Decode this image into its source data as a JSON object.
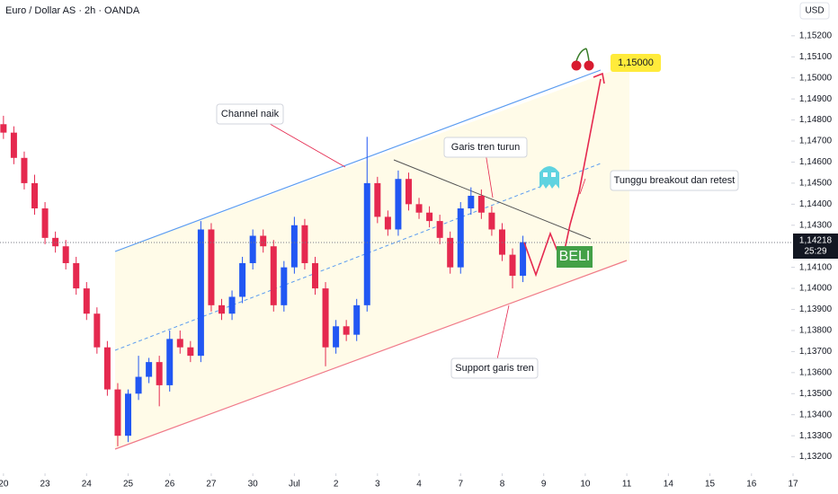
{
  "chart_data": {
    "type": "candlestick",
    "title": "Euro / Dollar AS · 2h · OANDA",
    "currency": "USD",
    "up_color": "#2157f3",
    "down_color": "#e5294f",
    "x": [
      0,
      3,
      6,
      9,
      12,
      15,
      18,
      21,
      24,
      27,
      30,
      33,
      36,
      39,
      42,
      45,
      48,
      51,
      54,
      57,
      60,
      63,
      66,
      69,
      72,
      75,
      78,
      81,
      84,
      87,
      90,
      93,
      96,
      99,
      102,
      105,
      108,
      111,
      114,
      117,
      120,
      123,
      126,
      129,
      132,
      135,
      138,
      141,
      144,
      147,
      150
    ],
    "open": [
      1.1478,
      1.1474,
      1.1462,
      1.145,
      1.1438,
      1.1424,
      1.142,
      1.1412,
      1.14,
      1.1388,
      1.1372,
      1.1352,
      1.133,
      1.135,
      1.1358,
      1.1365,
      1.1354,
      1.1376,
      1.1372,
      1.1368,
      1.1428,
      1.1392,
      1.1388,
      1.1396,
      1.1412,
      1.1425,
      1.142,
      1.1392,
      1.141,
      1.143,
      1.1412,
      1.14,
      1.1372,
      1.1382,
      1.1378,
      1.1392,
      1.145,
      1.1434,
      1.1428,
      1.1452,
      1.144,
      1.1436,
      1.1432,
      1.1424,
      1.141,
      1.1438,
      1.1444,
      1.1436,
      1.1428,
      1.1416,
      1.1406
    ],
    "high": [
      1.1482,
      1.1477,
      1.1465,
      1.1454,
      1.1441,
      1.1427,
      1.1423,
      1.1415,
      1.1403,
      1.1391,
      1.1375,
      1.1355,
      1.1352,
      1.1368,
      1.1367,
      1.1368,
      1.138,
      1.138,
      1.1375,
      1.1432,
      1.1431,
      1.1395,
      1.1399,
      1.1415,
      1.1428,
      1.1428,
      1.1423,
      1.1413,
      1.1434,
      1.1433,
      1.1415,
      1.1403,
      1.1385,
      1.1385,
      1.1395,
      1.1472,
      1.1453,
      1.1437,
      1.1456,
      1.1455,
      1.1443,
      1.1439,
      1.1435,
      1.1427,
      1.1441,
      1.1448,
      1.1447,
      1.1439,
      1.1431,
      1.1419,
      1.1425
    ],
    "low": [
      1.1471,
      1.1459,
      1.1447,
      1.1435,
      1.1421,
      1.1417,
      1.1409,
      1.1397,
      1.1385,
      1.1369,
      1.1349,
      1.1325,
      1.1327,
      1.1347,
      1.1355,
      1.1344,
      1.1351,
      1.1369,
      1.1365,
      1.1365,
      1.1389,
      1.1385,
      1.1385,
      1.1393,
      1.1409,
      1.1417,
      1.1389,
      1.1389,
      1.1407,
      1.1409,
      1.1397,
      1.1363,
      1.1369,
      1.1375,
      1.1375,
      1.1389,
      1.1431,
      1.1425,
      1.1425,
      1.1437,
      1.1433,
      1.1429,
      1.1421,
      1.1407,
      1.1407,
      1.1435,
      1.1433,
      1.1425,
      1.1413,
      1.14,
      1.1403
    ],
    "close": [
      1.1474,
      1.1462,
      1.145,
      1.1438,
      1.1424,
      1.142,
      1.1412,
      1.14,
      1.1388,
      1.1372,
      1.1352,
      1.133,
      1.135,
      1.1358,
      1.1365,
      1.1354,
      1.1376,
      1.1372,
      1.1368,
      1.1428,
      1.1392,
      1.1388,
      1.1396,
      1.1412,
      1.1425,
      1.142,
      1.1392,
      1.141,
      1.143,
      1.1412,
      1.14,
      1.1372,
      1.1382,
      1.1378,
      1.1392,
      1.145,
      1.1434,
      1.1428,
      1.1452,
      1.144,
      1.1436,
      1.1432,
      1.1424,
      1.141,
      1.1438,
      1.1444,
      1.1436,
      1.1428,
      1.1416,
      1.1406,
      1.1422
    ],
    "xlim": [
      -1,
      240
    ],
    "ylim": [
      1.1313,
      1.1537
    ],
    "yticks": [
      {
        "value": 1.132,
        "label": "1,13200"
      },
      {
        "value": 1.133,
        "label": "1,13300"
      },
      {
        "value": 1.134,
        "label": "1,13400"
      },
      {
        "value": 1.135,
        "label": "1,13500"
      },
      {
        "value": 1.136,
        "label": "1,13600"
      },
      {
        "value": 1.137,
        "label": "1,13700"
      },
      {
        "value": 1.138,
        "label": "1,13800"
      },
      {
        "value": 1.139,
        "label": "1,13900"
      },
      {
        "value": 1.14,
        "label": "1,14000"
      },
      {
        "value": 1.141,
        "label": "1,14100"
      },
      {
        "value": 1.143,
        "label": "1,14300"
      },
      {
        "value": 1.144,
        "label": "1,14400"
      },
      {
        "value": 1.145,
        "label": "1,14500"
      },
      {
        "value": 1.146,
        "label": "1,14600"
      },
      {
        "value": 1.147,
        "label": "1,14700"
      },
      {
        "value": 1.148,
        "label": "1,14800"
      },
      {
        "value": 1.149,
        "label": "1,14900"
      },
      {
        "value": 1.15,
        "label": "1,15000"
      },
      {
        "value": 1.151,
        "label": "1,15100"
      },
      {
        "value": 1.152,
        "label": "1,15200"
      }
    ],
    "xticks": [
      {
        "value": 0,
        "label": "20"
      },
      {
        "value": 12,
        "label": "23"
      },
      {
        "value": 24,
        "label": "24"
      },
      {
        "value": 36,
        "label": "25"
      },
      {
        "value": 48,
        "label": "26"
      },
      {
        "value": 60,
        "label": "27"
      },
      {
        "value": 72,
        "label": "30"
      },
      {
        "value": 84,
        "label": "Jul"
      },
      {
        "value": 96,
        "label": "2"
      },
      {
        "value": 108,
        "label": "3"
      },
      {
        "value": 120,
        "label": "4"
      },
      {
        "value": 132,
        "label": "7"
      },
      {
        "value": 144,
        "label": "8"
      },
      {
        "value": 156,
        "label": "9"
      },
      {
        "value": 168,
        "label": "10"
      },
      {
        "value": 180,
        "label": "11"
      },
      {
        "value": 192,
        "label": "14"
      },
      {
        "value": 204,
        "label": "15"
      },
      {
        "value": 216,
        "label": "16"
      },
      {
        "value": 228,
        "label": "17"
      }
    ],
    "last_price": {
      "value": 1.14218,
      "label": "1,14218"
    },
    "countdown": "25:29",
    "annotations": {
      "channel": "Channel naik",
      "downtrend": "Garis tren turun",
      "breakout": "Tunggu breakout dan retest",
      "support": "Support garis tren",
      "target": "1,15000",
      "signal": "BELI"
    }
  }
}
